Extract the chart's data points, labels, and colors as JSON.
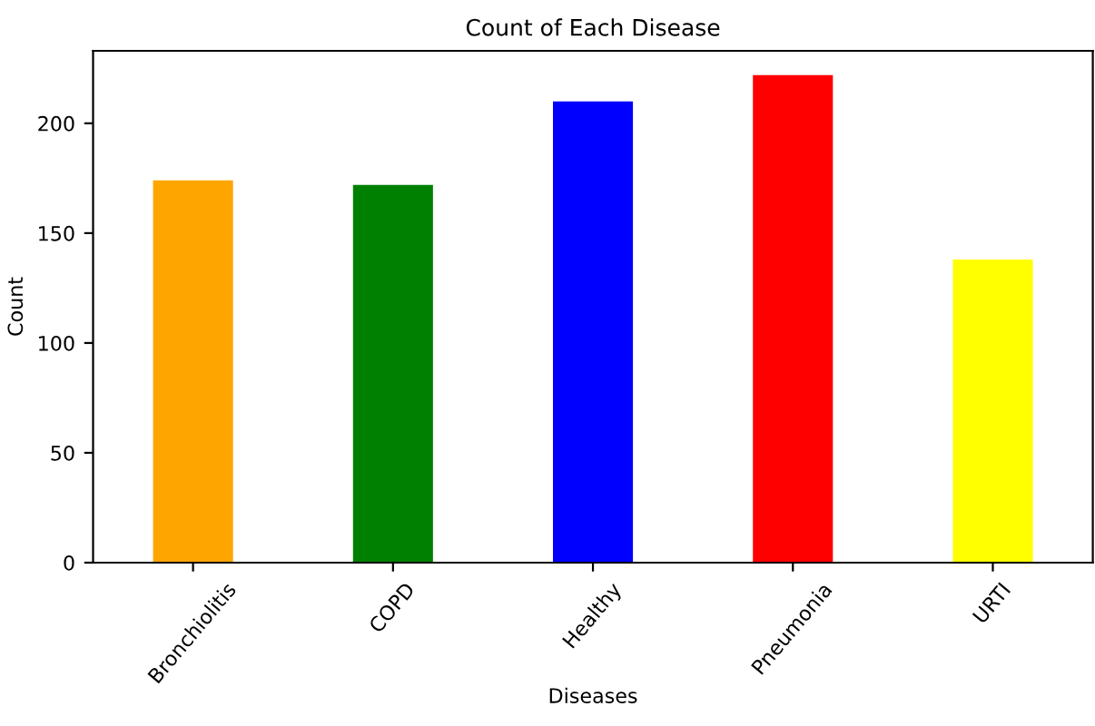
{
  "chart_data": {
    "type": "bar",
    "title": "Count of Each Disease",
    "xlabel": "Diseases",
    "ylabel": "Count",
    "categories": [
      "Bronchiolitis",
      "COPD",
      "Healthy",
      "Pneumonia",
      "URTI"
    ],
    "values": [
      174,
      172,
      210,
      222,
      138
    ],
    "colors": [
      "#ffa500",
      "#008000",
      "#0000ff",
      "#ff0000",
      "#ffff00"
    ],
    "ylim": [
      0,
      233
    ],
    "yticks": [
      0,
      50,
      100,
      150,
      200
    ],
    "grid": false,
    "legend": false
  }
}
